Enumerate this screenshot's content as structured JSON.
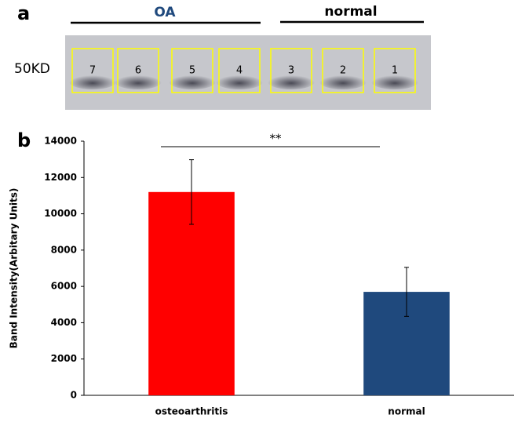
{
  "panel_a": {
    "label": "a",
    "groups": [
      "OA",
      "normal"
    ],
    "marker": "50KD",
    "lanes": [
      "7",
      "6",
      "5",
      "4",
      "3",
      "2",
      "1"
    ]
  },
  "chart_data": {
    "type": "bar",
    "panel_label": "b",
    "ylabel": "Band Intensity(Arbitary Units)",
    "categories": [
      "osteoarthritis",
      "normal"
    ],
    "values": [
      11200,
      5700
    ],
    "errors": [
      1780,
      1350
    ],
    "colors": [
      "#ff0000",
      "#1f497d"
    ],
    "ylim": [
      0,
      14000
    ],
    "yticks": [
      0,
      2000,
      4000,
      6000,
      8000,
      10000,
      12000,
      14000
    ],
    "grid": false,
    "annotation": "**"
  }
}
